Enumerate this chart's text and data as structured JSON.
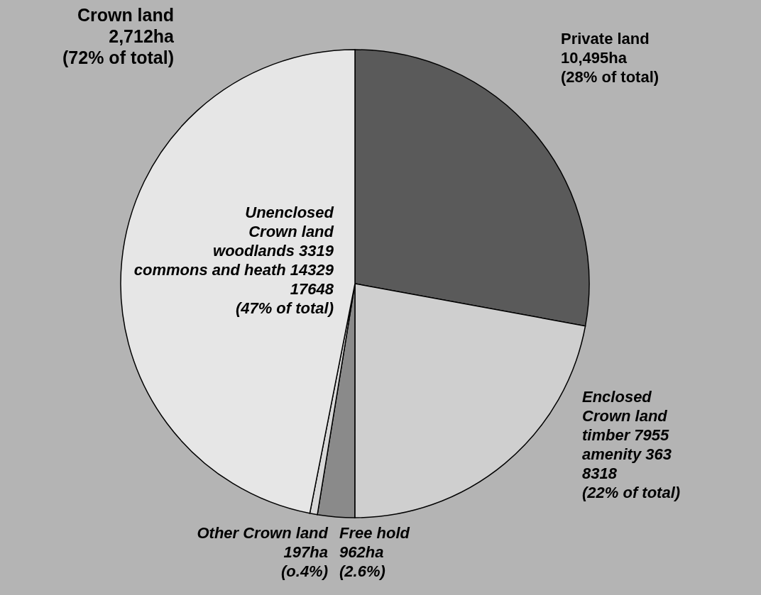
{
  "chart_data": {
    "type": "pie",
    "categories": [
      "Private land",
      "Enclosed\nCrown land",
      "Free hold",
      "Other Crown land",
      "Unenclosed\nCrown land"
    ],
    "values": [
      10495,
      8318,
      962,
      197,
      17648
    ],
    "colors": [
      "#5a5a5a",
      "#cfcfcf",
      "#8a8a8a",
      "#d8d8d8",
      "#e6e6e6"
    ],
    "value_labels": [
      "10,495ha\n(28% of total)",
      "timber 7955\namenity 363\n8318\n(22% of total)",
      "962ha\n(2.6%)",
      "197ha\n(o.4%)",
      "woodlands 3319\ncommons and heath 14329\n17648\n(47% of total)"
    ],
    "annotations": [
      "Crown land\n2,712ha\n(72% of total)"
    ]
  }
}
